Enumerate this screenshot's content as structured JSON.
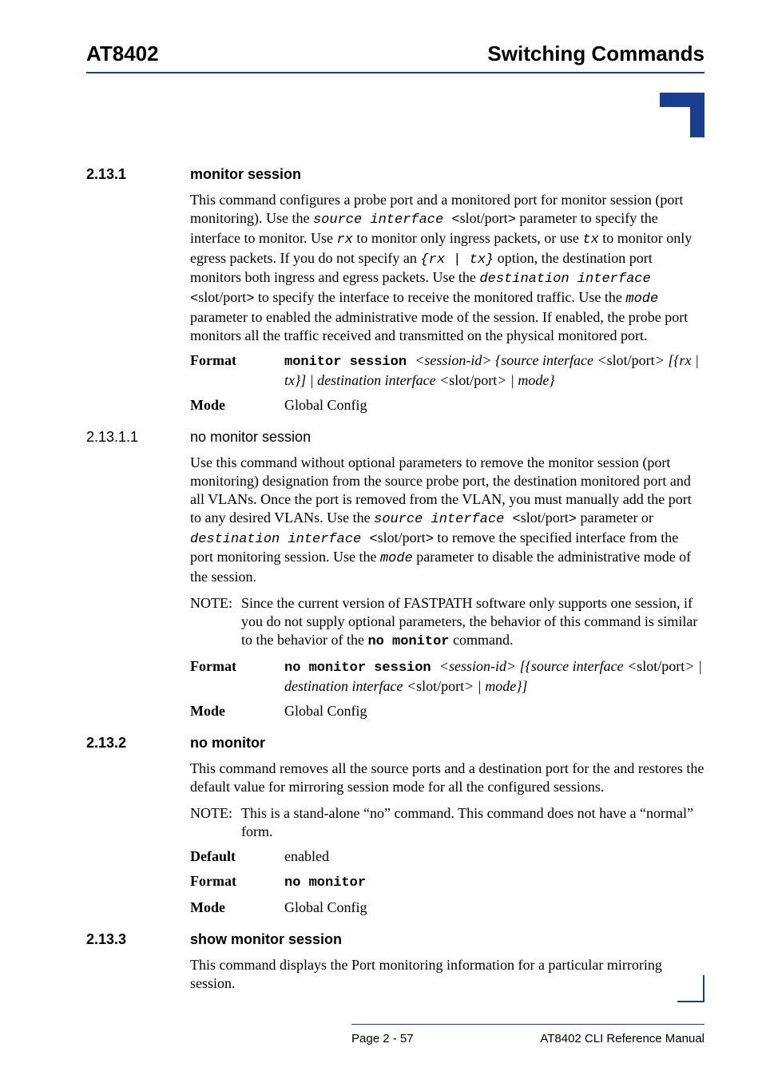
{
  "header": {
    "left": "AT8402",
    "right": "Switching Commands"
  },
  "sections": [
    {
      "num": "2.13.1",
      "title": "monitor session",
      "bold": true,
      "blocks": [
        {
          "type": "para",
          "runs": [
            {
              "t": "This command configures a probe port and a monitored port for monitor session (port monitoring). Use the "
            },
            {
              "t": "source interface <",
              "cls": "mono ital"
            },
            {
              "t": "slot/port"
            },
            {
              "t": ">",
              "cls": "mono ital"
            },
            {
              "t": " parameter to specify the interface to monitor. Use "
            },
            {
              "t": "rx",
              "cls": "mono ital"
            },
            {
              "t": " to monitor only ingress packets, or use "
            },
            {
              "t": "tx",
              "cls": "mono ital"
            },
            {
              "t": " to monitor only egress packets. If you do not specify an "
            },
            {
              "t": "{rx | tx}",
              "cls": "mono ital"
            },
            {
              "t": " option, the destination port monitors both ingress and egress packets. Use the "
            },
            {
              "t": "destination interface <",
              "cls": "mono ital"
            },
            {
              "t": "slot/port"
            },
            {
              "t": ">",
              "cls": "mono ital"
            },
            {
              "t": " to specify the interface to receive the monitored traffic. Use the "
            },
            {
              "t": "mode",
              "cls": "mono ital"
            },
            {
              "t": " parameter to enabled the administrative mode of the session. If enabled, the probe port monitors all the traffic received and transmitted on the physical monitored port."
            }
          ]
        },
        {
          "type": "fmt",
          "label": "Format",
          "runs": [
            {
              "t": "monitor session ",
              "cls": "mono bold"
            },
            {
              "t": "<session-id> {source interface <",
              "cls": "ital"
            },
            {
              "t": "slot/port"
            },
            {
              "t": "> [{rx | tx}] | destination interface <",
              "cls": "ital"
            },
            {
              "t": "slot/port"
            },
            {
              "t": "> | mode}",
              "cls": "ital"
            }
          ]
        },
        {
          "type": "fmt",
          "label": "Mode",
          "runs": [
            {
              "t": "Global Config"
            }
          ]
        }
      ]
    },
    {
      "num": "2.13.1.1",
      "title": "no monitor session",
      "bold": false,
      "blocks": [
        {
          "type": "para",
          "runs": [
            {
              "t": "Use this command without optional parameters to remove the monitor session (port monitoring) designation from the source probe port, the destination monitored port and all VLANs. Once the port is removed from the VLAN, you must manually add the port to any desired VLANs. Use the "
            },
            {
              "t": "source interface <",
              "cls": "mono ital"
            },
            {
              "t": "slot/port"
            },
            {
              "t": ">",
              "cls": "mono ital"
            },
            {
              "t": " parameter or "
            },
            {
              "t": "destination interface <",
              "cls": "mono ital"
            },
            {
              "t": "slot/port"
            },
            {
              "t": ">",
              "cls": "mono ital"
            },
            {
              "t": " to remove the specified interface from the port monitoring session. Use the "
            },
            {
              "t": "mode",
              "cls": "mono ital"
            },
            {
              "t": " parameter to disable the administrative mode of the session."
            }
          ]
        },
        {
          "type": "note",
          "label": "NOTE:",
          "runs": [
            {
              "t": "Since the current version of FASTPATH software only supports one session, if you do not supply optional parameters, the behavior of this command is similar to the behavior of the "
            },
            {
              "t": "no monitor",
              "cls": "mono bold"
            },
            {
              "t": " command."
            }
          ]
        },
        {
          "type": "fmt",
          "label": "Format",
          "runs": [
            {
              "t": "no monitor session ",
              "cls": "mono bold"
            },
            {
              "t": "<session-id> [{source interface <",
              "cls": "ital"
            },
            {
              "t": "slot/port"
            },
            {
              "t": "> | destination interface <",
              "cls": "ital"
            },
            {
              "t": "slot/port"
            },
            {
              "t": "> | mode}]",
              "cls": "ital"
            }
          ]
        },
        {
          "type": "fmt",
          "label": "Mode",
          "runs": [
            {
              "t": "Global Config"
            }
          ]
        }
      ]
    },
    {
      "num": "2.13.2",
      "title": "no monitor",
      "bold": true,
      "blocks": [
        {
          "type": "para",
          "runs": [
            {
              "t": "This command removes all the source ports and a destination port for the and restores the default value for mirroring session mode for all the configured sessions."
            }
          ]
        },
        {
          "type": "note",
          "label": "NOTE:",
          "runs": [
            {
              "t": "This is a stand-alone “no” command. This command does not have a “normal” form."
            }
          ]
        },
        {
          "type": "fmt",
          "label": "Default",
          "runs": [
            {
              "t": "enabled"
            }
          ]
        },
        {
          "type": "fmt",
          "label": "Format",
          "runs": [
            {
              "t": "no monitor",
              "cls": "mono bold"
            }
          ]
        },
        {
          "type": "fmt",
          "label": "Mode",
          "runs": [
            {
              "t": "Global Config"
            }
          ]
        }
      ]
    },
    {
      "num": "2.13.3",
      "title": "show monitor session",
      "bold": true,
      "blocks": [
        {
          "type": "para",
          "runs": [
            {
              "t": "This command displays the Port monitoring information for a particular mirroring session."
            }
          ]
        }
      ]
    }
  ],
  "footer": {
    "page": "Page 2 - 57",
    "doc": "AT8402 CLI Reference Manual"
  }
}
